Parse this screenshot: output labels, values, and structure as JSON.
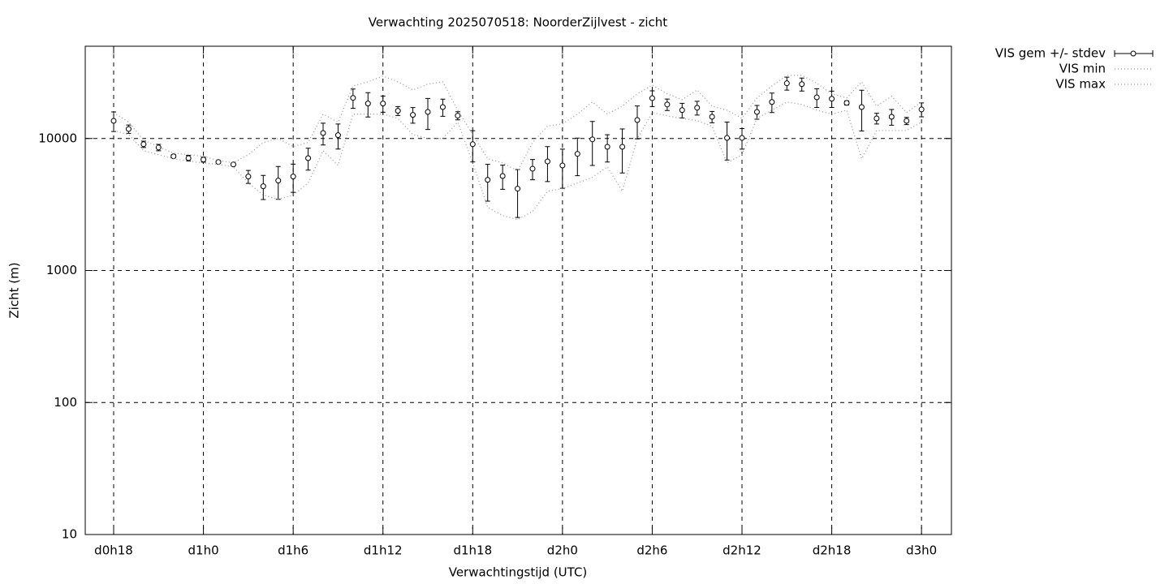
{
  "chart_data": {
    "type": "errorbar",
    "title": "Verwachting 2025070518: NoorderZijlvest - zicht",
    "x_label": "Verwachtingstijd (UTC)",
    "y_label": "Zicht (m)",
    "x": [
      18,
      19,
      20,
      21,
      22,
      23,
      24,
      25,
      26,
      27,
      28,
      29,
      30,
      31,
      32,
      33,
      34,
      35,
      36,
      37,
      38,
      39,
      40,
      41,
      42,
      43,
      44,
      45,
      46,
      47,
      48,
      49,
      50,
      51,
      52,
      53,
      54,
      55,
      56,
      57,
      58,
      59,
      60,
      61,
      62,
      63,
      64,
      65,
      66,
      67,
      68,
      69,
      70,
      71,
      72
    ],
    "series": [
      {
        "name": "VIS gem +/- stdev",
        "color": "#000000",
        "values": [
          13600,
          11800,
          9050,
          8550,
          7330,
          7100,
          6920,
          6640,
          6360,
          5150,
          4350,
          4800,
          5150,
          7100,
          11000,
          10600,
          20300,
          18400,
          18400,
          16200,
          15100,
          15900,
          17300,
          14900,
          9050,
          4860,
          5200,
          4170,
          5900,
          6700,
          6250,
          7650,
          9850,
          8650,
          8650,
          13800,
          20200,
          18100,
          16400,
          17100,
          14600,
          10100,
          10100,
          15900,
          18900,
          26200,
          25800,
          20500,
          20000,
          18600,
          17300,
          14200,
          14600,
          13600,
          16600
        ],
        "errors": [
          2300,
          850,
          500,
          480,
          200,
          350,
          300,
          150,
          150,
          580,
          900,
          1340,
          1240,
          1340,
          2070,
          2280,
          3400,
          3860,
          2600,
          1250,
          2040,
          4200,
          2560,
          1050,
          2400,
          1510,
          1080,
          1650,
          1030,
          1980,
          2050,
          2420,
          3600,
          2020,
          3170,
          3850,
          2750,
          1800,
          2090,
          2050,
          1450,
          3220,
          1790,
          1900,
          3170,
          2950,
          2910,
          3330,
          2830,
          660,
          5900,
          1330,
          1990,
          860,
          2010
        ]
      },
      {
        "name": "VIS min",
        "color": "#999999",
        "values": [
          11500,
          10700,
          8090,
          7540,
          7030,
          6730,
          6540,
          6360,
          6100,
          4600,
          3720,
          3470,
          3720,
          4600,
          8090,
          6270,
          15300,
          15300,
          15300,
          14200,
          10700,
          10000,
          10000,
          13300,
          6540,
          3010,
          2610,
          2430,
          2800,
          3990,
          4170,
          4600,
          5080,
          6100,
          3990,
          10000,
          15700,
          14850,
          14200,
          13640,
          12400,
          6540,
          7540,
          14200,
          16400,
          18900,
          18100,
          16400,
          15300,
          16400,
          7030,
          11500,
          11500,
          11500,
          13300
        ]
      },
      {
        "name": "VIS max",
        "color": "#999999",
        "values": [
          15700,
          13300,
          9720,
          8680,
          7750,
          7540,
          7330,
          6820,
          6540,
          7540,
          9320,
          10000,
          8680,
          9320,
          15300,
          13300,
          25000,
          26900,
          29700,
          26900,
          23300,
          25800,
          26900,
          16400,
          10700,
          7030,
          6540,
          5680,
          9320,
          12400,
          12900,
          15300,
          18900,
          15300,
          17600,
          21800,
          25400,
          21800,
          19700,
          23300,
          17600,
          16400,
          14200,
          20300,
          25000,
          30100,
          30100,
          26200,
          21800,
          20300,
          26900,
          17600,
          20900,
          15700,
          18900
        ]
      }
    ],
    "xlim": [
      16.1,
      74
    ],
    "xticks": [
      {
        "value": 18,
        "label": "d0h18"
      },
      {
        "value": 24,
        "label": "d1h0"
      },
      {
        "value": 30,
        "label": "d1h6"
      },
      {
        "value": 36,
        "label": "d1h12"
      },
      {
        "value": 42,
        "label": "d1h18"
      },
      {
        "value": 48,
        "label": "d2h0"
      },
      {
        "value": 54,
        "label": "d2h6"
      },
      {
        "value": 60,
        "label": "d2h12"
      },
      {
        "value": 66,
        "label": "d2h18"
      },
      {
        "value": 72,
        "label": "d3h0"
      }
    ],
    "ylim": [
      10,
      50000
    ],
    "yticks": [
      10,
      100,
      1000,
      10000
    ],
    "log_y": true,
    "grid": true
  }
}
